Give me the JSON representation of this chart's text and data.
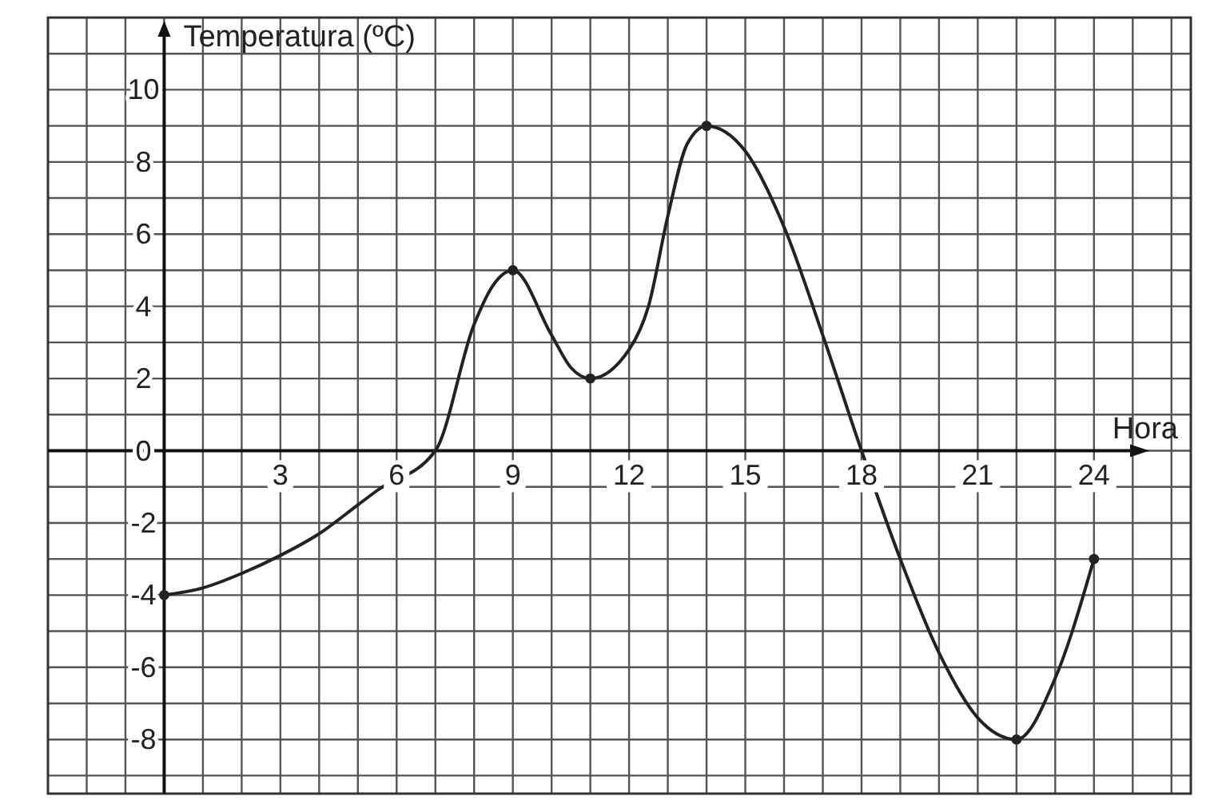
{
  "chart_data": {
    "type": "line",
    "xlabel": "Hora",
    "ylabel": "Temperatura (ºC)",
    "xlim": [
      -3,
      26.5
    ],
    "ylim": [
      -9.5,
      12
    ],
    "xticks": [
      {
        "value": -2,
        "label": null
      },
      {
        "value": -1,
        "label": null
      },
      {
        "value": 0,
        "label": null
      },
      {
        "value": 1,
        "label": null
      },
      {
        "value": 2,
        "label": null
      },
      3,
      {
        "value": 4,
        "label": null
      },
      {
        "value": 5,
        "label": null
      },
      6,
      {
        "value": 7,
        "label": null
      },
      {
        "value": 8,
        "label": null
      },
      9,
      {
        "value": 10,
        "label": null
      },
      {
        "value": 11,
        "label": null
      },
      12,
      {
        "value": 13,
        "label": null
      },
      {
        "value": 14,
        "label": null
      },
      15,
      {
        "value": 16,
        "label": null
      },
      {
        "value": 17,
        "label": null
      },
      18,
      {
        "value": 19,
        "label": null
      },
      {
        "value": 20,
        "label": null
      },
      21,
      {
        "value": 22,
        "label": null
      },
      {
        "value": 23,
        "label": null
      },
      24,
      {
        "value": 25,
        "label": null
      },
      {
        "value": 26,
        "label": null
      }
    ],
    "yticks": [
      {
        "value": -9,
        "label": null
      },
      -8,
      {
        "value": -7,
        "label": null
      },
      -6,
      {
        "value": -5,
        "label": null
      },
      -4,
      {
        "value": -3,
        "label": null
      },
      -2,
      {
        "value": -1,
        "label": null
      },
      0,
      {
        "value": 1,
        "label": null
      },
      2,
      {
        "value": 3,
        "label": null
      },
      4,
      {
        "value": 5,
        "label": null
      },
      6,
      {
        "value": 7,
        "label": null
      },
      8,
      {
        "value": 9,
        "label": null
      },
      10,
      {
        "value": 11,
        "label": null
      }
    ],
    "grid": true,
    "line_style": "solid",
    "series": [
      {
        "color": "#222222",
        "marker": "none",
        "x": [
          0,
          1,
          2,
          3,
          4,
          5,
          5.5,
          7,
          8,
          8.5,
          9,
          10,
          10.5,
          11,
          12,
          12.5,
          13,
          13.5,
          14,
          15,
          16,
          17,
          18,
          19,
          20,
          21,
          22,
          23,
          24
        ],
        "values": [
          -4,
          -3.8,
          -3.4,
          -2.9,
          -2.3,
          -1.5,
          -1.1,
          0,
          3.5,
          4.6,
          5,
          3.2,
          2.3,
          2,
          2.8,
          4,
          6.5,
          8.5,
          9,
          8.3,
          6.2,
          3.2,
          0,
          -3,
          -5.6,
          -7.4,
          -8,
          -6.3,
          -3
        ]
      },
      {
        "type": "scatter",
        "color": "#222222",
        "marker": "circle",
        "x": [
          0,
          9,
          11,
          14,
          22,
          24
        ],
        "values": [
          -4,
          5,
          2,
          9,
          -8,
          -3
        ]
      }
    ]
  }
}
